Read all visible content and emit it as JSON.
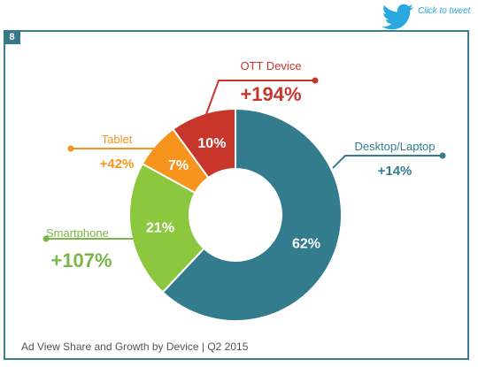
{
  "share": {
    "label": "Click to tweet",
    "icon": "twitter-bird-icon",
    "color": "#29a9e0"
  },
  "figure": {
    "number": "8",
    "caption": "Ad View Share and Growth by Device | Q2 2015",
    "frame_color": "#3d7f90"
  },
  "chart_data": {
    "type": "pie",
    "title": "",
    "categories": [
      "Desktop/Laptop",
      "Smartphone",
      "Tablet",
      "OTT Device"
    ],
    "series": [
      {
        "values": [
          62,
          21,
          7,
          10
        ],
        "unit": "%"
      }
    ],
    "share_labels": [
      "62%",
      "21%",
      "7%",
      "10%"
    ],
    "growth": [
      "+14%",
      "+107%",
      "+42%",
      "+194%"
    ],
    "colors": [
      "#337c8e",
      "#8dc63f",
      "#f7941d",
      "#c8362b"
    ],
    "label_colors": [
      "#337c8e",
      "#7ab648",
      "#f7941d",
      "#c8362b"
    ],
    "donut": true
  }
}
